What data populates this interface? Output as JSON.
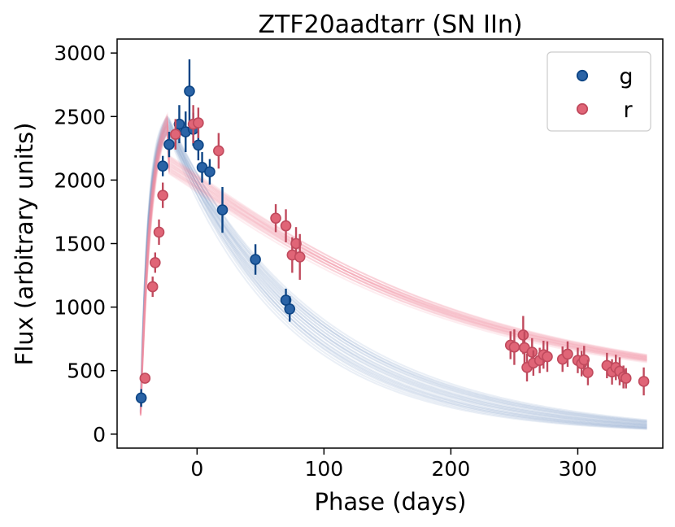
{
  "chart_data": {
    "type": "scatter",
    "title": "ZTF20aadtarr (SN IIn)",
    "xlabel": "Phase (days)",
    "ylabel": "Flux (arbitrary units)",
    "xlim": [
      -63,
      367
    ],
    "ylim": [
      -110,
      3110
    ],
    "xticks": [
      0,
      100,
      200,
      300
    ],
    "yticks": [
      0,
      500,
      1000,
      1500,
      2000,
      2500,
      3000
    ],
    "grid": false,
    "legend_position": "top-right",
    "series": [
      {
        "name": "g",
        "color": "#2a63a6",
        "edge_color": "#0d4585",
        "model_color": "#7c9cc6",
        "points": [
          {
            "x": -44,
            "y": 285,
            "err": 70
          },
          {
            "x": -27,
            "y": 2110,
            "err": 80
          },
          {
            "x": -22,
            "y": 2280,
            "err": 100
          },
          {
            "x": -14,
            "y": 2440,
            "err": 150
          },
          {
            "x": -9,
            "y": 2380,
            "err": 160
          },
          {
            "x": -6,
            "y": 2700,
            "err": 250
          },
          {
            "x": -3,
            "y": 2400,
            "err": 130
          },
          {
            "x": 1,
            "y": 2275,
            "err": 120
          },
          {
            "x": 4,
            "y": 2100,
            "err": 120
          },
          {
            "x": 10,
            "y": 2065,
            "err": 100
          },
          {
            "x": 20,
            "y": 1765,
            "err": 180
          },
          {
            "x": 46,
            "y": 1375,
            "err": 120
          },
          {
            "x": 70,
            "y": 1055,
            "err": 90
          },
          {
            "x": 73,
            "y": 985,
            "err": 100
          }
        ],
        "model": {
          "t0": -45,
          "amplitude": 2440,
          "tau_rise": 6.5,
          "tau_fall": 107,
          "fall_range": [
            92,
            122
          ]
        }
      },
      {
        "name": "r",
        "color": "#e06577",
        "edge_color": "#c04a5d",
        "model_color": "#f08f9f",
        "points": [
          {
            "x": -41,
            "y": 440,
            "err": 40
          },
          {
            "x": -35,
            "y": 1160,
            "err": 80
          },
          {
            "x": -33,
            "y": 1350,
            "err": 80
          },
          {
            "x": -30,
            "y": 1590,
            "err": 100
          },
          {
            "x": -27,
            "y": 1880,
            "err": 100
          },
          {
            "x": -17,
            "y": 2360,
            "err": 120
          },
          {
            "x": -3,
            "y": 2440,
            "err": 150
          },
          {
            "x": 1,
            "y": 2450,
            "err": 120
          },
          {
            "x": 17,
            "y": 2230,
            "err": 140
          },
          {
            "x": 62,
            "y": 1700,
            "err": 110
          },
          {
            "x": 70,
            "y": 1640,
            "err": 130
          },
          {
            "x": 75,
            "y": 1410,
            "err": 140
          },
          {
            "x": 78,
            "y": 1500,
            "err": 130
          },
          {
            "x": 81,
            "y": 1395,
            "err": 180
          },
          {
            "x": 247,
            "y": 700,
            "err": 110
          },
          {
            "x": 250,
            "y": 685,
            "err": 140
          },
          {
            "x": 257,
            "y": 780,
            "err": 150
          },
          {
            "x": 258,
            "y": 680,
            "err": 130
          },
          {
            "x": 260,
            "y": 525,
            "err": 110
          },
          {
            "x": 264,
            "y": 645,
            "err": 110
          },
          {
            "x": 265,
            "y": 560,
            "err": 100
          },
          {
            "x": 270,
            "y": 580,
            "err": 100
          },
          {
            "x": 273,
            "y": 625,
            "err": 110
          },
          {
            "x": 276,
            "y": 610,
            "err": 120
          },
          {
            "x": 288,
            "y": 590,
            "err": 100
          },
          {
            "x": 292,
            "y": 630,
            "err": 100
          },
          {
            "x": 300,
            "y": 580,
            "err": 100
          },
          {
            "x": 303,
            "y": 555,
            "err": 100
          },
          {
            "x": 305,
            "y": 585,
            "err": 110
          },
          {
            "x": 308,
            "y": 485,
            "err": 100
          },
          {
            "x": 323,
            "y": 540,
            "err": 100
          },
          {
            "x": 327,
            "y": 490,
            "err": 100
          },
          {
            "x": 330,
            "y": 525,
            "err": 100
          },
          {
            "x": 333,
            "y": 495,
            "err": 110
          },
          {
            "x": 336,
            "y": 450,
            "err": 90
          },
          {
            "x": 338,
            "y": 440,
            "err": 80
          },
          {
            "x": 352,
            "y": 415,
            "err": 110
          }
        ],
        "model": {
          "t0": -45,
          "amplitude": 2460,
          "tau_rise": 8,
          "tau_fall": 182,
          "fall_range": [
            174,
            190
          ],
          "floor": 330
        }
      }
    ]
  }
}
